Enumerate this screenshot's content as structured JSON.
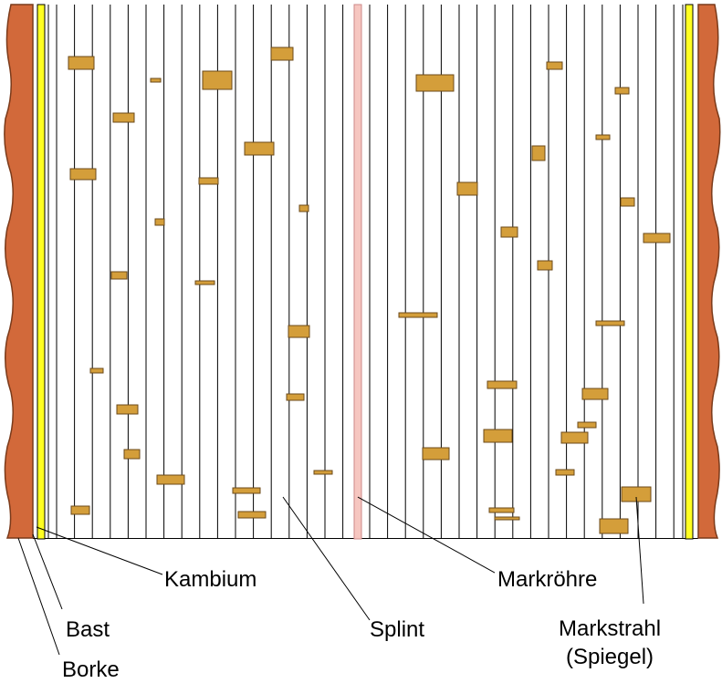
{
  "labels": {
    "kambium": "Kambium",
    "bast": "Bast",
    "borke": "Borke",
    "splint": "Splint",
    "markroehre": "Markröhre",
    "markstrahl": "Markstrahl",
    "spiegel": "(Spiegel)"
  }
}
